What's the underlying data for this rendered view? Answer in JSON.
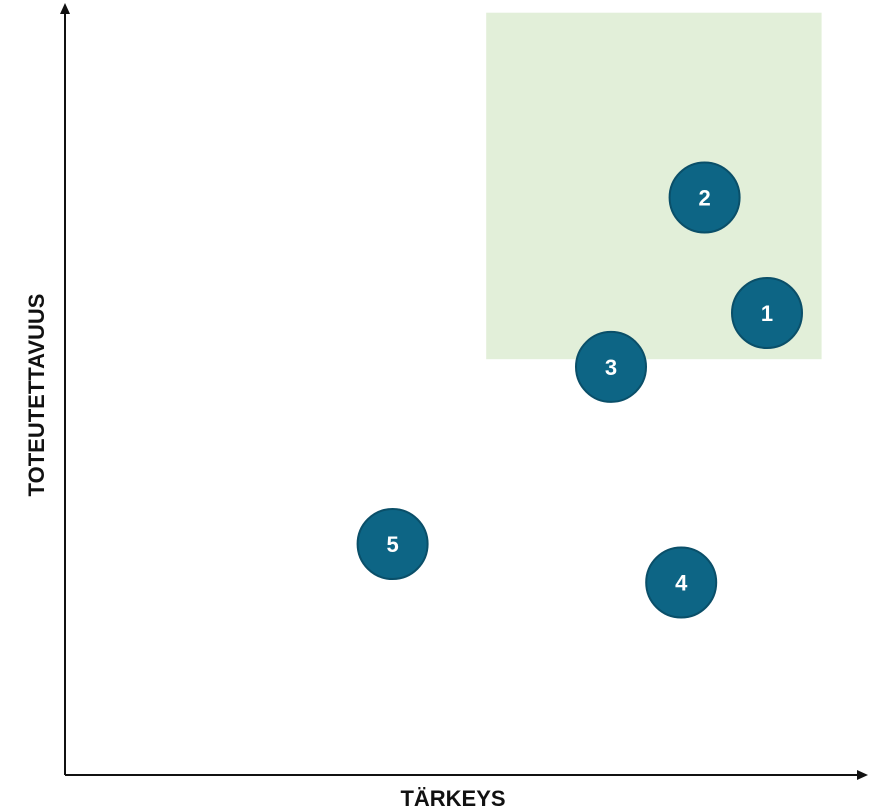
{
  "chart_data": {
    "type": "scatter",
    "title": "",
    "xlabel": "TÄRKEYS",
    "ylabel": "TOTEUTETTAVUUS",
    "xlim": [
      0,
      10
    ],
    "ylim": [
      0,
      10
    ],
    "grid": false,
    "highlight_region": {
      "x": [
        5.4,
        9.7
      ],
      "y": [
        5.4,
        9.9
      ],
      "color": "#e2efd9"
    },
    "points": [
      {
        "label": "1",
        "x": 9.0,
        "y": 6.0
      },
      {
        "label": "2",
        "x": 8.2,
        "y": 7.5
      },
      {
        "label": "3",
        "x": 7.0,
        "y": 5.3
      },
      {
        "label": "4",
        "x": 7.9,
        "y": 2.5
      },
      {
        "label": "5",
        "x": 4.2,
        "y": 3.0
      }
    ],
    "colors": {
      "marker": "#0d6585",
      "marker_stroke": "#0a4f69",
      "label": "#ffffff",
      "axis": "#111111"
    }
  }
}
